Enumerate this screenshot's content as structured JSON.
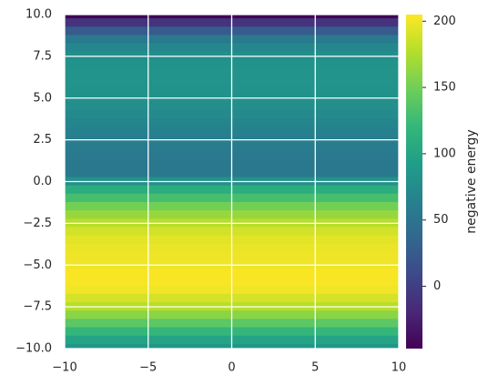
{
  "chart_data": {
    "type": "heatmap",
    "y": [
      10,
      9.5,
      9,
      8.5,
      8,
      7.5,
      7,
      6.5,
      6,
      5.5,
      5,
      4.5,
      4,
      3.5,
      3,
      2.5,
      2,
      1.5,
      1,
      0.5,
      0,
      -0.5,
      -1,
      -1.5,
      -2,
      -2.5,
      -3,
      -3.5,
      -4,
      -4.5,
      -5,
      -5.5,
      -6,
      -6.5,
      -7,
      -7.5,
      -8,
      -8.5,
      -9,
      -9.5,
      -10
    ],
    "values": [
      -45,
      -10,
      25,
      55,
      70,
      78,
      82,
      83,
      83,
      82,
      80,
      77,
      73,
      68,
      64,
      60,
      57,
      55,
      54,
      54,
      80,
      110,
      130,
      150,
      165,
      178,
      188,
      195,
      198,
      199,
      200,
      203,
      203,
      200,
      190,
      178,
      160,
      140,
      120,
      100,
      85
    ],
    "xlim": [
      -10,
      10
    ],
    "ylim": [
      -10,
      10
    ],
    "xticks": [
      {
        "value": -10,
        "label": "−10"
      },
      {
        "value": -5,
        "label": "−5"
      },
      0,
      5,
      10
    ],
    "yticks": [
      {
        "value": -10,
        "label": "−10.0"
      },
      {
        "value": -7.5,
        "label": "−7.5"
      },
      {
        "value": -5,
        "label": "−5.0"
      },
      {
        "value": -2.5,
        "label": "−2.5"
      },
      {
        "value": 0,
        "label": "0.0"
      },
      2.5,
      {
        "value": 5,
        "label": "5.0"
      },
      7.5,
      {
        "value": 10,
        "label": "10.0"
      }
    ],
    "grid": true,
    "grid_color": "#ffffff",
    "colormap": [
      "#440154",
      "#482878",
      "#3e4989",
      "#31688e",
      "#26828e",
      "#1f9e89",
      "#35b779",
      "#6ece58",
      "#b5de2b",
      "#fde725"
    ],
    "colorbar": {
      "label": "negative energy",
      "lim": [
        -47,
        205
      ],
      "ticks": [
        0,
        50,
        100,
        150,
        200
      ]
    }
  }
}
